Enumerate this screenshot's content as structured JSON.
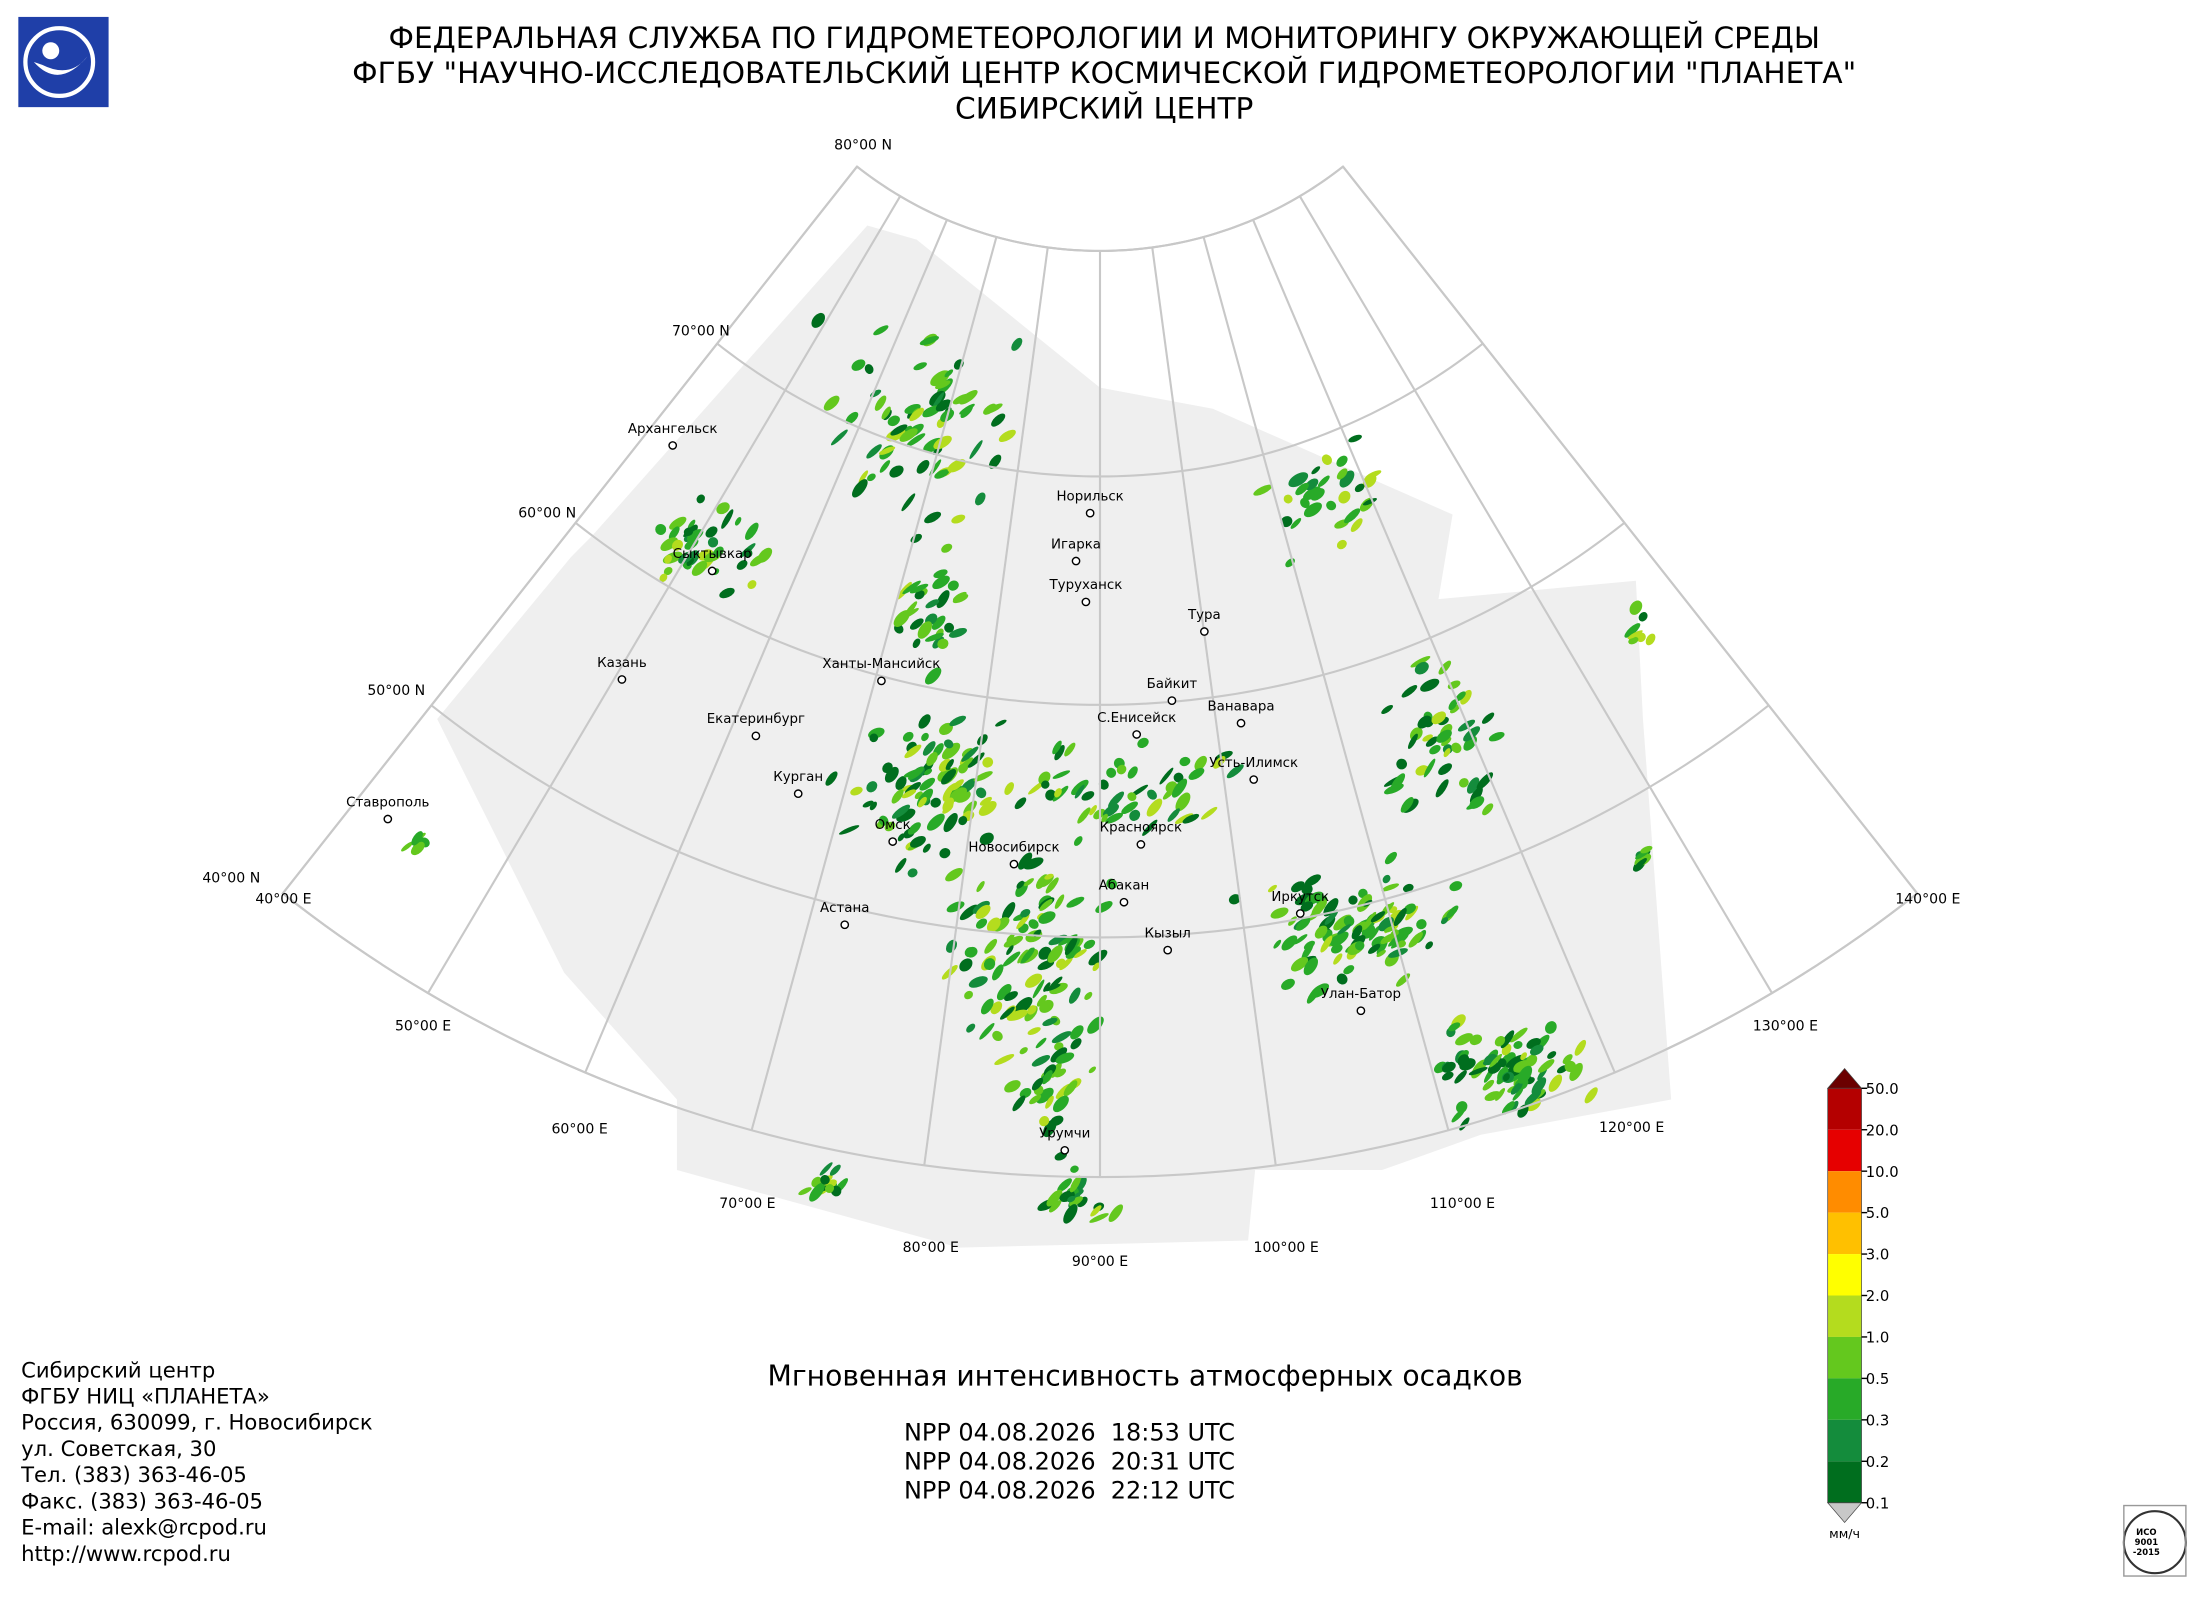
{
  "header": {
    "lines": [
      "ФЕДЕРАЛЬНАЯ СЛУЖБА ПО ГИДРОМЕТЕОРОЛОГИИ И МОНИТОРИНГУ ОКРУЖАЮЩЕЙ СРЕДЫ",
      "ФГБУ \"НАУЧНО-ИССЛЕДОВАТЕЛЬСКИЙ ЦЕНТР КОСМИЧЕСКОЙ ГИДРОМЕТЕОРОЛОГИИ \"ПЛАНЕТА\"",
      "СИБИРСКИЙ ЦЕНТР"
    ]
  },
  "map": {
    "latitude_labels": [
      "80°00 N",
      "70°00 N",
      "60°00 N",
      "50°00 N",
      "40°00 N"
    ],
    "longitude_labels": [
      "40°00 E",
      "50°00 E",
      "60°00 E",
      "70°00 E",
      "80°00 E",
      "90°00 E",
      "100°00 E",
      "110°00 E",
      "120°00 E",
      "130°00 E",
      "140°00 E"
    ],
    "cities": [
      "Архангельск",
      "Сыктывкар",
      "Казань",
      "Екатеринбург",
      "Курган",
      "Ставрополь",
      "Ханты-Мансийск",
      "Омск",
      "Новосибирск",
      "Астана",
      "Норильск",
      "Игарка",
      "Туруханск",
      "Тура",
      "Байкит",
      "Ванавара",
      "С.Енисейск",
      "Усть-Илимск",
      "Красноярск",
      "Абакан",
      "Иркутск",
      "Кызыл",
      "Улан-Батор",
      "Урумчи"
    ]
  },
  "legend": {
    "labels": [
      "50.0",
      "20.0",
      "10.0",
      "5.0",
      "3.0",
      "2.0",
      "1.0",
      "0.5",
      "0.3",
      "0.2",
      "0.1"
    ],
    "colors": [
      "#6b0000",
      "#b40000",
      "#e60000",
      "#ff8c00",
      "#ffc000",
      "#ffff00",
      "#b4dc1e",
      "#64c81e",
      "#28aa28",
      "#148c3c",
      "#006e1e",
      "#c8c8c8"
    ],
    "unit": "мм/ч"
  },
  "product": {
    "title": "Мгновенная интенсивность атмосферных осадков",
    "passes": [
      "NPP 04.08.2026  18:53 UTC",
      "NPP 04.08.2026  20:31 UTC",
      "NPP 04.08.2026  22:12 UTC"
    ]
  },
  "contact": {
    "lines": [
      "Сибирский центр",
      "ФГБУ НИЦ «ПЛАНЕТА»",
      "Россия, 630099, г. Новосибирск",
      "ул. Советская, 30",
      "Тел. (383) 363-46-05",
      "Факс. (383) 363-46-05",
      "E-mail: alexk@rcpod.ru",
      "http://www.rcpod.ru"
    ]
  },
  "certificate": {
    "lines": [
      "ИСО",
      "9001",
      "-2015"
    ]
  }
}
